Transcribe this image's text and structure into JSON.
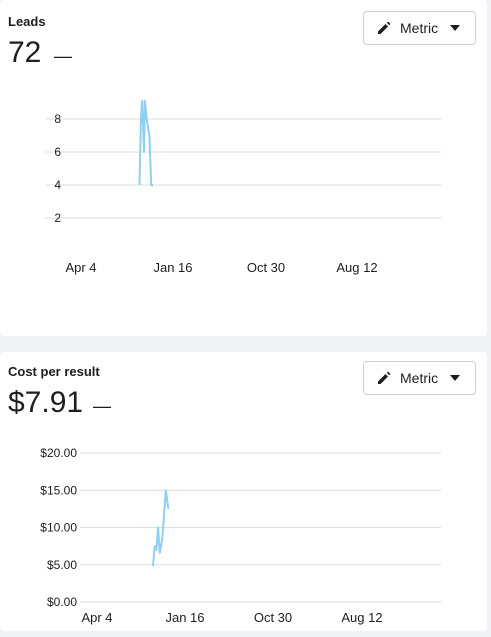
{
  "leads_card": {
    "title": "Leads",
    "value": "72",
    "dash": "—",
    "metric_button_label": "Metric"
  },
  "cpr_card": {
    "title": "Cost per result",
    "value": "$7.91",
    "dash": "—",
    "metric_button_label": "Metric"
  },
  "colors": {
    "line": "#8fd0ef",
    "grid": "#dadde1",
    "tick_text": "#1c1e21"
  },
  "icons": [
    "pencil-icon",
    "caret-down-icon"
  ],
  "chart_data": [
    {
      "type": "line",
      "chart": "leads",
      "y_ticks": [
        "2",
        "4",
        "6",
        "8"
      ],
      "x_ticks": [
        "Apr 4",
        "Jan 16",
        "Oct 30",
        "Aug 12"
      ],
      "ylim": [
        2,
        8
      ],
      "grid": true,
      "points": [
        {
          "x": 0.0,
          "y": 4
        },
        {
          "x": 0.08,
          "y": 8
        },
        {
          "x": 0.15,
          "y": 9.1
        },
        {
          "x": 0.25,
          "y": 6
        },
        {
          "x": 0.3,
          "y": 9.1
        },
        {
          "x": 0.4,
          "y": 8
        },
        {
          "x": 0.55,
          "y": 7
        },
        {
          "x": 0.65,
          "y": 4
        },
        {
          "x": 0.75,
          "y": 4
        }
      ]
    },
    {
      "type": "line",
      "chart": "cost_per_result",
      "y_ticks": [
        "$0.00",
        "$5.00",
        "$10.00",
        "$15.00",
        "$20.00"
      ],
      "x_ticks": [
        "Apr 4",
        "Jan 16",
        "Oct 30",
        "Aug 12"
      ],
      "ylim": [
        0,
        20
      ],
      "grid": true,
      "points": [
        {
          "x": 0.0,
          "y": 4.8
        },
        {
          "x": 0.1,
          "y": 7.5
        },
        {
          "x": 0.2,
          "y": 7.0
        },
        {
          "x": 0.3,
          "y": 10.0
        },
        {
          "x": 0.4,
          "y": 6.6
        },
        {
          "x": 0.55,
          "y": 8.5
        },
        {
          "x": 0.75,
          "y": 15.0
        },
        {
          "x": 0.9,
          "y": 12.5
        }
      ]
    }
  ]
}
